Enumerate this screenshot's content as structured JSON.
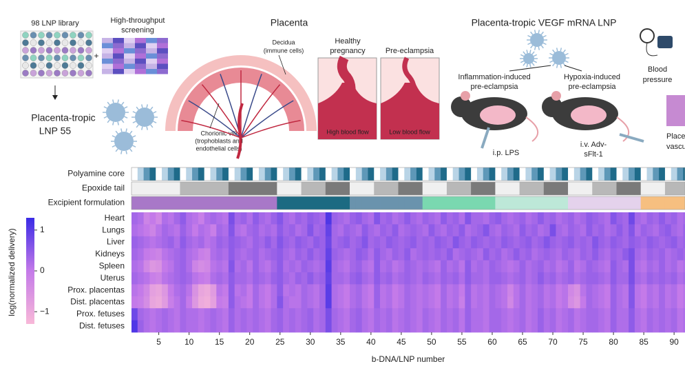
{
  "panel_a": {
    "library": "98 LNP library",
    "plus": "+",
    "screening": [
      "High-throughput",
      "screening"
    ],
    "lead": [
      "Placenta-tropic",
      "LNP 55"
    ],
    "placenta_title": "Placenta",
    "decidua": [
      "Decidua",
      "(immune cells)"
    ],
    "villi": [
      "Chorionic villi",
      "(trophoblasts and",
      "endothelial cells)"
    ],
    "healthy": [
      "Healthy",
      "pregnancy"
    ],
    "pre": "Pre-eclampsia",
    "high_flow": "High blood flow",
    "low_flow": "Low blood flow",
    "vegf_title": "Placenta-tropic VEGF mRNA LNP",
    "inflammation": [
      "Inflammation-induced",
      "pre-eclampsia"
    ],
    "hypoxia": [
      "Hypoxia-induced",
      "pre-eclampsia"
    ],
    "lps": "i.p. LPS",
    "adv": [
      "i.v. Adv-",
      "sFlt-1"
    ],
    "blood_pressure": [
      "Blood",
      "pressure"
    ],
    "vasculature": [
      "Place",
      "vascul"
    ]
  },
  "chart_data": {
    "type": "heatmap",
    "xlabel": "b-DNA/LNP number",
    "x": [
      1,
      2,
      3,
      4,
      5,
      6,
      7,
      8,
      9,
      10,
      11,
      12,
      13,
      14,
      15,
      16,
      17,
      18,
      19,
      20,
      21,
      22,
      23,
      24,
      25,
      26,
      27,
      28,
      29,
      30,
      31,
      32,
      33,
      34,
      35,
      36,
      37,
      38,
      39,
      40,
      41,
      42,
      43,
      44,
      45,
      46,
      47,
      48,
      49,
      50,
      51,
      52,
      53,
      54,
      55,
      56,
      57,
      58,
      59,
      60,
      61,
      62,
      63,
      64,
      65,
      66,
      67,
      68,
      69,
      70,
      71,
      72,
      73,
      74,
      75,
      76,
      77,
      78,
      79,
      80,
      81,
      82,
      83,
      84,
      85,
      86,
      87,
      88,
      89,
      90,
      91,
      92
    ],
    "xlim": [
      0.5,
      91.8
    ],
    "xticks": [
      5,
      10,
      15,
      20,
      25,
      30,
      35,
      40,
      45,
      50,
      55,
      60,
      65,
      70,
      75,
      80,
      85,
      90
    ],
    "colorbar_label": "log(normalized delivery)",
    "clim": [
      -1.3,
      1.3
    ],
    "cticks": [
      {
        "value": 1,
        "label": "1"
      },
      {
        "value": 0,
        "label": "0"
      },
      {
        "value": -1,
        "label": "−1"
      }
    ],
    "colormap": [
      "#f8b8d8",
      "#c47ae9",
      "#3a2be6"
    ],
    "tracks": [
      {
        "name": "Polyamine core",
        "palette": {
          "a": "#ffffff",
          "b": "#b9d4e6",
          "c": "#5e98b8",
          "d": "#1f6b8a"
        },
        "codes": "abcdabcdabcdabcdabcdabcdabcdabcdabcdabcdabcdabcdabcdabcdabcdabcdabcdabcdabcdabcdabcdabcdabcd"
      },
      {
        "name": "Epoxide tail",
        "palette": {
          "A": "#f0f0f0",
          "B": "#b8b8b8",
          "C": "#7a7a7a"
        },
        "codes": "AAAAAAAABBBBBBBBCCCCCCCCAAAABBBBCCCCAAAABBBBCCCCAAAABBBBCCCCAAAABBBBCCCCAAAABBBBCCCCAAAABBBB"
      },
      {
        "name": "Excipient formulation",
        "palette": {
          "P": "#a878c8",
          "T": "#1c6a82",
          "S": "#6a93ad",
          "M": "#7ad8b0",
          "N": "#bde8d8",
          "L": "#e4d2ec",
          "O": "#f6bf80"
        },
        "codes": "PPPPPPPPPPPPPPPPPPPPPPPPTTTTTTTTTTTTSSSSSSSSSSSSMMMMMMMMMMMMNNNNNNNNNNNNLLLLLLLLLLLLOOOOOOOO"
      }
    ],
    "series": [
      {
        "name": "Heart",
        "values": [
          0.3,
          0.2,
          -0.2,
          0.0,
          -0.3,
          0.2,
          0.1,
          0.3,
          0.5,
          0.2,
          0.1,
          -0.1,
          0.2,
          0.3,
          0.2,
          0.1,
          0.7,
          0.3,
          0.4,
          0.2,
          0.5,
          0.3,
          0.2,
          0.4,
          0.6,
          0.3,
          0.2,
          0.4,
          0.3,
          0.5,
          0.4,
          0.3,
          1.1,
          0.4,
          0.3,
          0.2,
          0.4,
          0.5,
          0.3,
          0.2,
          0.6,
          0.3,
          0.4,
          0.2,
          0.3,
          0.5,
          0.3,
          0.2,
          0.4,
          0.3,
          0.2,
          0.5,
          0.3,
          0.4,
          0.2,
          0.6,
          0.3,
          0.3,
          0.2,
          0.4,
          0.5,
          0.3,
          0.2,
          0.3,
          0.4,
          0.2,
          0.3,
          0.5,
          0.3,
          0.4,
          0.2,
          0.3,
          0.4,
          0.2,
          0.3,
          0.5,
          0.4,
          0.3,
          0.2,
          0.6,
          0.4,
          0.3,
          0.8,
          0.3,
          0.2,
          0.4,
          0.3,
          0.5,
          0.3,
          0.4,
          0.2,
          0.3
        ]
      },
      {
        "name": "Lungs",
        "values": [
          0.2,
          0.1,
          0.0,
          -0.2,
          0.1,
          0.3,
          0.2,
          0.1,
          0.4,
          0.2,
          0.0,
          0.2,
          0.1,
          -0.1,
          0.3,
          0.2,
          0.6,
          0.2,
          0.1,
          0.3,
          0.4,
          0.2,
          0.3,
          0.2,
          0.5,
          0.3,
          0.4,
          0.2,
          0.3,
          0.6,
          0.3,
          0.4,
          0.9,
          0.3,
          0.2,
          0.4,
          0.3,
          0.2,
          0.5,
          0.3,
          0.2,
          0.4,
          0.3,
          0.5,
          0.2,
          0.3,
          0.4,
          0.3,
          0.2,
          0.5,
          0.3,
          0.2,
          0.4,
          0.3,
          0.5,
          0.2,
          0.3,
          0.4,
          0.6,
          0.3,
          0.2,
          0.4,
          0.3,
          0.2,
          0.5,
          0.3,
          0.4,
          0.2,
          0.3,
          0.7,
          0.3,
          0.2,
          0.4,
          0.3,
          0.2,
          0.5,
          0.3,
          0.4,
          0.2,
          0.3,
          0.5,
          0.3,
          0.6,
          0.2,
          0.4,
          0.3,
          0.2,
          0.4,
          0.5,
          0.3,
          0.2,
          0.4
        ]
      },
      {
        "name": "Liver",
        "values": [
          0.4,
          0.3,
          0.2,
          0.1,
          0.2,
          0.3,
          0.4,
          0.2,
          0.5,
          0.3,
          0.2,
          0.3,
          0.1,
          0.2,
          0.4,
          0.3,
          0.5,
          0.4,
          0.3,
          0.2,
          0.4,
          0.3,
          0.5,
          0.3,
          0.6,
          0.4,
          0.3,
          0.5,
          0.4,
          0.3,
          0.5,
          0.4,
          0.8,
          0.3,
          0.4,
          0.5,
          0.3,
          0.4,
          0.6,
          0.3,
          0.4,
          0.3,
          0.5,
          0.4,
          0.3,
          0.4,
          0.5,
          0.3,
          0.4,
          0.3,
          0.5,
          0.4,
          0.3,
          0.6,
          0.4,
          0.3,
          0.5,
          0.4,
          0.3,
          0.4,
          0.3,
          0.5,
          0.4,
          0.3,
          0.4,
          0.5,
          0.3,
          0.4,
          0.6,
          0.4,
          0.3,
          0.4,
          0.5,
          0.3,
          0.4,
          0.3,
          0.6,
          0.4,
          0.3,
          0.5,
          0.4,
          0.3,
          0.5,
          0.4,
          0.3,
          0.5,
          0.4,
          0.3,
          0.4,
          0.5,
          0.3,
          0.4
        ]
      },
      {
        "name": "Kidneys",
        "values": [
          0.3,
          0.2,
          0.0,
          -0.1,
          -0.2,
          0.1,
          0.2,
          0.3,
          0.4,
          0.2,
          0.1,
          -0.1,
          -0.2,
          0.2,
          0.3,
          0.2,
          0.5,
          0.3,
          0.2,
          0.3,
          0.4,
          0.2,
          0.3,
          0.4,
          0.5,
          0.3,
          0.2,
          0.4,
          0.3,
          0.5,
          0.3,
          0.4,
          0.9,
          0.4,
          0.3,
          0.2,
          0.3,
          0.5,
          0.4,
          0.2,
          0.5,
          0.3,
          0.2,
          0.4,
          0.3,
          0.5,
          0.2,
          0.3,
          0.4,
          0.3,
          0.4,
          0.3,
          0.5,
          0.2,
          0.3,
          0.4,
          0.3,
          0.2,
          0.5,
          0.3,
          0.4,
          0.2,
          0.3,
          0.5,
          0.3,
          0.4,
          0.2,
          0.3,
          0.4,
          0.3,
          0.2,
          0.4,
          0.3,
          0.2,
          0.4,
          0.3,
          0.5,
          0.3,
          0.2,
          0.4,
          0.3,
          0.5,
          0.7,
          0.3,
          0.2,
          0.4,
          0.3,
          0.4,
          0.2,
          0.3,
          0.4,
          0.3
        ]
      },
      {
        "name": "Spleen",
        "values": [
          0.2,
          0.1,
          -0.3,
          -0.6,
          -0.5,
          0.0,
          0.1,
          0.3,
          0.4,
          0.2,
          -0.2,
          -0.4,
          -0.3,
          0.1,
          0.2,
          0.1,
          0.6,
          0.2,
          0.3,
          0.1,
          0.4,
          0.2,
          0.1,
          0.3,
          0.5,
          0.2,
          0.3,
          0.2,
          0.4,
          0.3,
          0.2,
          0.3,
          1.0,
          0.3,
          0.2,
          0.1,
          0.3,
          0.4,
          0.2,
          0.1,
          0.5,
          0.2,
          0.3,
          0.1,
          0.2,
          0.4,
          0.3,
          0.2,
          0.3,
          0.2,
          0.1,
          0.4,
          0.2,
          0.3,
          0.1,
          0.5,
          0.2,
          0.3,
          0.2,
          0.4,
          0.3,
          0.2,
          0.1,
          0.2,
          0.4,
          0.2,
          0.3,
          0.4,
          0.2,
          0.3,
          0.1,
          0.2,
          0.4,
          0.1,
          0.2,
          0.4,
          0.3,
          0.2,
          0.1,
          0.5,
          0.3,
          0.2,
          0.7,
          0.2,
          0.1,
          0.3,
          0.2,
          0.4,
          0.2,
          0.3,
          0.1,
          0.2
        ]
      },
      {
        "name": "Uterus",
        "values": [
          0.3,
          0.2,
          0.1,
          -0.1,
          -0.2,
          0.1,
          0.2,
          0.3,
          0.4,
          0.3,
          0.1,
          0.0,
          -0.1,
          0.2,
          0.3,
          0.2,
          0.5,
          0.3,
          0.3,
          0.2,
          0.4,
          0.3,
          0.2,
          0.4,
          0.5,
          0.3,
          0.2,
          0.4,
          0.3,
          0.5,
          0.3,
          0.4,
          0.9,
          0.3,
          0.3,
          0.2,
          0.4,
          0.5,
          0.3,
          0.2,
          0.5,
          0.3,
          0.4,
          0.2,
          0.3,
          0.4,
          0.3,
          0.2,
          0.4,
          0.3,
          0.2,
          0.4,
          0.3,
          0.4,
          0.2,
          0.5,
          0.3,
          0.3,
          0.2,
          0.4,
          0.4,
          0.3,
          0.2,
          0.3,
          0.4,
          0.2,
          0.3,
          0.5,
          0.3,
          0.4,
          0.2,
          0.3,
          0.4,
          0.2,
          0.3,
          0.4,
          0.4,
          0.3,
          0.2,
          0.5,
          0.3,
          0.3,
          0.7,
          0.3,
          0.2,
          0.4,
          0.3,
          0.4,
          0.3,
          0.4,
          0.2,
          0.3
        ]
      },
      {
        "name": "Prox. placentas",
        "values": [
          0.1,
          0.0,
          -0.3,
          -0.8,
          -0.9,
          -0.6,
          0.0,
          0.2,
          0.3,
          0.1,
          -0.5,
          -0.9,
          -1.0,
          -0.7,
          0.1,
          0.0,
          0.5,
          0.1,
          0.2,
          0.0,
          0.3,
          0.1,
          0.0,
          0.2,
          0.5,
          0.1,
          0.2,
          0.1,
          0.3,
          0.2,
          0.1,
          0.3,
          1.0,
          0.2,
          0.1,
          0.0,
          0.2,
          0.3,
          0.1,
          0.0,
          0.4,
          0.1,
          0.2,
          0.0,
          0.1,
          0.3,
          0.2,
          0.1,
          0.2,
          0.1,
          0.0,
          0.3,
          0.1,
          0.2,
          0.0,
          0.4,
          0.1,
          0.2,
          0.1,
          0.3,
          0.2,
          0.1,
          -0.2,
          0.1,
          0.3,
          0.1,
          0.2,
          0.3,
          0.1,
          0.2,
          0.0,
          0.1,
          -0.3,
          -0.5,
          0.1,
          0.3,
          0.2,
          0.1,
          0.0,
          0.4,
          0.2,
          0.1,
          0.6,
          0.1,
          0.0,
          0.2,
          0.1,
          0.3,
          0.1,
          0.2,
          0.0,
          0.1
        ]
      },
      {
        "name": "Dist. placentas",
        "values": [
          0.0,
          -0.1,
          -0.4,
          -0.9,
          -1.0,
          -0.7,
          -0.1,
          0.1,
          0.3,
          0.0,
          -0.6,
          -1.0,
          -1.1,
          -0.8,
          0.0,
          -0.1,
          0.5,
          0.2,
          0.1,
          0.0,
          0.3,
          0.1,
          0.0,
          0.2,
          0.6,
          0.2,
          0.1,
          0.1,
          0.3,
          0.2,
          0.1,
          0.3,
          1.0,
          0.2,
          0.1,
          0.0,
          0.2,
          0.3,
          0.1,
          0.0,
          0.4,
          0.1,
          0.2,
          0.0,
          0.1,
          0.3,
          0.2,
          0.1,
          0.2,
          0.1,
          0.0,
          0.3,
          0.1,
          0.2,
          -0.1,
          0.4,
          0.1,
          0.2,
          0.1,
          0.3,
          0.2,
          0.1,
          -0.3,
          0.1,
          0.3,
          0.1,
          0.2,
          0.3,
          0.1,
          0.2,
          0.0,
          0.1,
          -0.4,
          -0.6,
          0.0,
          0.3,
          0.2,
          0.1,
          0.0,
          0.4,
          0.2,
          0.1,
          0.6,
          0.1,
          0.0,
          0.2,
          0.1,
          0.3,
          0.1,
          0.2,
          0.0,
          0.1
        ]
      },
      {
        "name": "Prox. fetuses",
        "values": [
          0.8,
          0.3,
          0.2,
          0.1,
          0.2,
          0.3,
          0.2,
          0.1,
          0.3,
          0.2,
          0.2,
          0.1,
          0.2,
          0.3,
          0.2,
          0.1,
          0.4,
          0.2,
          0.3,
          0.2,
          0.3,
          0.2,
          0.1,
          0.3,
          0.4,
          0.2,
          0.3,
          0.2,
          0.3,
          0.4,
          0.2,
          0.3,
          0.7,
          0.3,
          0.2,
          0.1,
          0.3,
          0.4,
          0.2,
          0.1,
          0.3,
          0.2,
          0.3,
          0.1,
          0.2,
          0.3,
          0.2,
          0.1,
          0.3,
          0.2,
          0.1,
          0.3,
          0.2,
          0.3,
          0.1,
          0.4,
          0.2,
          0.2,
          0.1,
          0.3,
          0.3,
          0.2,
          0.1,
          0.2,
          0.3,
          0.1,
          0.2,
          0.4,
          0.2,
          0.3,
          0.1,
          0.2,
          0.3,
          0.1,
          0.2,
          0.3,
          0.3,
          0.2,
          0.1,
          0.4,
          0.2,
          0.2,
          0.5,
          0.2,
          0.1,
          0.3,
          0.2,
          0.3,
          0.2,
          0.3,
          0.1,
          0.2
        ]
      },
      {
        "name": "Dist. fetuses",
        "values": [
          1.1,
          0.4,
          0.2,
          0.1,
          0.2,
          0.3,
          0.2,
          0.1,
          0.3,
          0.2,
          0.2,
          0.1,
          0.2,
          0.3,
          0.2,
          0.1,
          0.4,
          0.2,
          0.3,
          0.2,
          0.3,
          0.2,
          0.1,
          0.3,
          0.4,
          0.2,
          0.3,
          0.2,
          0.3,
          0.4,
          0.2,
          0.3,
          0.7,
          0.3,
          0.2,
          0.1,
          0.3,
          0.4,
          0.2,
          0.1,
          0.3,
          0.2,
          0.3,
          0.1,
          0.2,
          0.3,
          0.2,
          0.1,
          0.3,
          0.2,
          0.1,
          0.3,
          0.2,
          0.3,
          0.1,
          0.4,
          0.2,
          0.2,
          0.1,
          0.3,
          0.3,
          0.2,
          0.1,
          0.2,
          0.3,
          0.1,
          0.2,
          0.4,
          0.2,
          0.3,
          0.1,
          0.2,
          0.3,
          0.1,
          0.2,
          0.3,
          0.3,
          0.2,
          0.1,
          0.4,
          0.2,
          0.2,
          0.5,
          0.2,
          0.1,
          0.3,
          0.2,
          0.3,
          0.2,
          0.3,
          0.1,
          0.2
        ]
      }
    ]
  }
}
